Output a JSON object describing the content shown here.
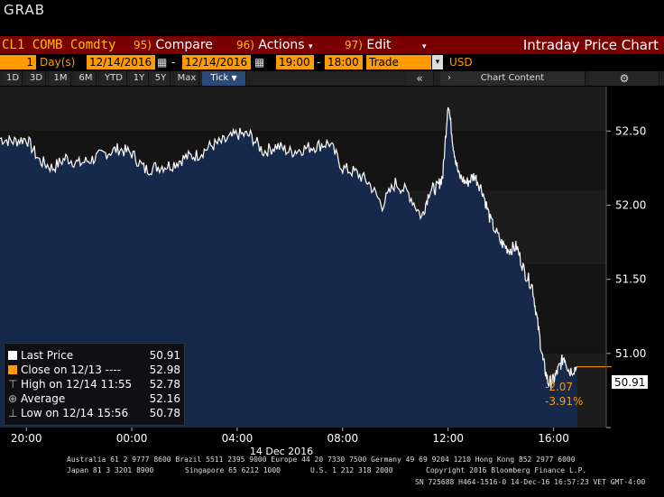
{
  "window_title": "GRAB",
  "toolbar": {
    "security": "CL1 COMB Comdty",
    "compare_num": "95)",
    "compare_label": "Compare",
    "actions_num": "96)",
    "actions_label": "Actions",
    "edit_num": "97)",
    "edit_label": "Edit",
    "chart_title": "Intraday Price Chart"
  },
  "params": {
    "period_count": "1",
    "period_unit": "Day(s)",
    "start_date": "12/14/2016",
    "end_date": "12/14/2016",
    "start_time": "19:00",
    "end_time": "18:00",
    "event": "Trade",
    "currency": "USD"
  },
  "range_buttons": [
    "1D",
    "3D",
    "1M",
    "6M",
    "YTD",
    "1Y",
    "5Y",
    "Max"
  ],
  "selected_interval": "Tick",
  "chart_content_label": "Chart Content",
  "legend": {
    "last_label": "Last Price",
    "last_value": "50.91",
    "close_label": "Close on 12/13 ----",
    "close_value": "52.98",
    "high_label": "High on 12/14 11:55",
    "high_value": "52.78",
    "avg_label": "Average",
    "avg_value": "52.16",
    "low_label": "Low on 12/14 15:56",
    "low_value": "50.78"
  },
  "last_price_tag": "50.91",
  "change_abs": "-2.07",
  "change_pct": "-3.91%",
  "date_label": "14 Dec 2016",
  "footer": {
    "line1": "Australia 61 2 9777 8600 Brazil 5511 2395 9000 Europe 44 20 7330 7500 Germany 49 69 9204 1210 Hong Kong 852 2977 6000",
    "line2a": "Japan 81 3 3201 8900",
    "line2b": "Singapore 65 6212 1000",
    "line2c": "U.S. 1 212 318 2000",
    "line2d": "Copyright 2016 Bloomberg Finance L.P.",
    "line3": "SN 725688 H464-1516-0 14-Dec-16 16:57:23 VET  GMT-4:00"
  },
  "colors": {
    "area_fill": "#16294a",
    "price_line": "#ffffff",
    "accent": "#ff9a00",
    "toolbar_red": "#7a0000"
  },
  "chart_data": {
    "type": "line",
    "ylim": [
      50.5,
      52.8
    ],
    "y_ticks": [
      50.5,
      51.0,
      51.5,
      52.0,
      52.5
    ],
    "y_tick_labels": [
      "",
      "51.00",
      "51.50",
      "52.00",
      "52.50"
    ],
    "x_tick_labels": [
      "20:00",
      "00:00",
      "04:00",
      "08:00",
      "12:00",
      "16:00"
    ],
    "x_tick_hours": [
      20,
      24,
      28,
      32,
      36,
      40
    ],
    "x_range_hours": [
      19,
      42
    ],
    "series": [
      {
        "x_hours": [
          19.0,
          19.5,
          20.0,
          20.5,
          21.0,
          21.5,
          22.0,
          22.5,
          23.0,
          23.5,
          24.0,
          24.5,
          25.0,
          25.5,
          26.0,
          26.5,
          27.0,
          27.5,
          28.0,
          28.5,
          29.0,
          29.5,
          30.0,
          30.5,
          31.0,
          31.5,
          32.0,
          32.5,
          33.0,
          33.5,
          34.0,
          34.5,
          35.0,
          35.3,
          35.6,
          35.8,
          36.0,
          36.2,
          36.4,
          36.7,
          37.0,
          37.3,
          37.6,
          38.0,
          38.3,
          38.6,
          38.9,
          39.2,
          39.4,
          39.6,
          39.8,
          40.0,
          40.2,
          40.4,
          40.6,
          40.9
        ],
        "values": [
          52.45,
          52.43,
          52.45,
          52.3,
          52.25,
          52.32,
          52.28,
          52.31,
          52.35,
          52.38,
          52.35,
          52.24,
          52.26,
          52.27,
          52.32,
          52.34,
          52.4,
          52.43,
          52.48,
          52.47,
          52.36,
          52.4,
          52.36,
          52.38,
          52.4,
          52.42,
          52.25,
          52.22,
          52.15,
          52.0,
          52.15,
          52.08,
          51.92,
          52.1,
          52.12,
          52.2,
          52.7,
          52.4,
          52.2,
          52.15,
          52.2,
          52.1,
          51.9,
          51.75,
          51.7,
          51.72,
          51.55,
          51.45,
          51.2,
          50.95,
          50.8,
          50.82,
          50.9,
          50.98,
          50.88,
          50.91
        ]
      }
    ]
  }
}
